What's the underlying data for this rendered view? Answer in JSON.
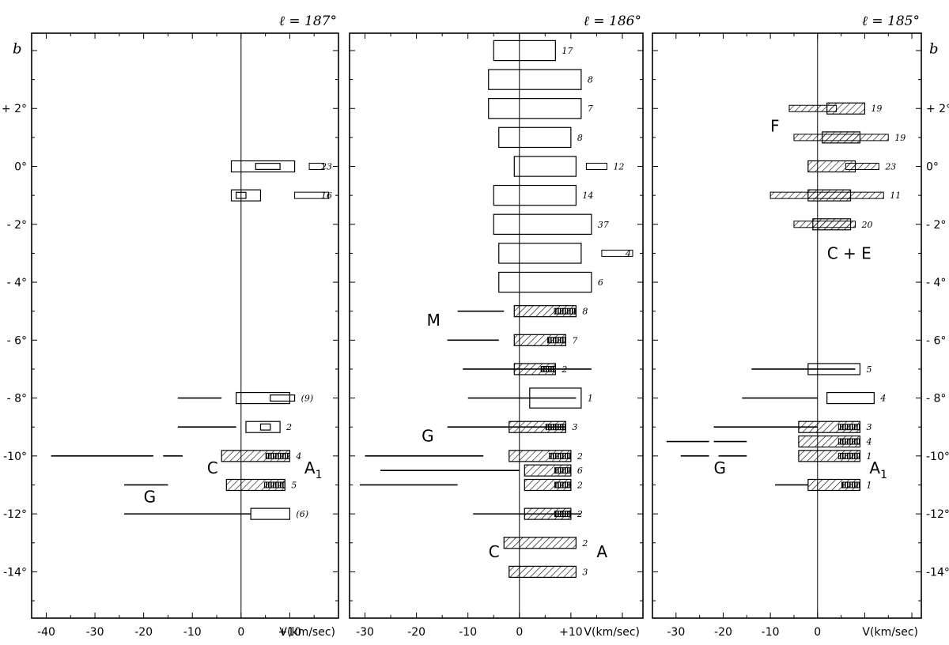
{
  "chart_data": [
    {
      "type": "scatter",
      "panel_label": "ℓ = 187°",
      "ylabel": "b",
      "xlabel": "V(km/sec)",
      "xlim": [
        -43,
        20
      ],
      "ylim": [
        -15.6,
        4.6
      ],
      "x_tick_labels": [
        "-40",
        "-30",
        "-20",
        "-10",
        "0",
        "+10"
      ],
      "y_tick_labels": [
        "+ 2°",
        "0°",
        "- 2°",
        "- 4°",
        "- 6°",
        "- 8°",
        "-10°",
        "-12°",
        "-14°"
      ],
      "feature_labels": [
        "C",
        "A1",
        "G"
      ],
      "features": [
        {
          "b": 0,
          "kind": "open",
          "boxes": [
            [
              -2,
              11
            ],
            [
              3,
              8
            ]
          ],
          "extra": [
            [
              14,
              17
            ]
          ],
          "count": "23"
        },
        {
          "b": -1,
          "kind": "open",
          "boxes": [
            [
              -2,
              4
            ],
            [
              -1,
              1
            ]
          ],
          "extra": [
            [
              11,
              18
            ]
          ],
          "count": "16"
        },
        {
          "b": -8,
          "kind": "open",
          "boxes": [
            [
              -1,
              10
            ],
            [
              6,
              11
            ]
          ],
          "lines": [
            [
              -13,
              -4
            ]
          ],
          "count": "(9)"
        },
        {
          "b": -9,
          "kind": "open",
          "boxes": [
            [
              1,
              8
            ],
            [
              4,
              6
            ]
          ],
          "lines": [
            [
              -13,
              -1
            ]
          ],
          "count": "2"
        },
        {
          "b": -10,
          "kind": "hatched",
          "boxes": [
            [
              -4,
              10
            ]
          ],
          "lines": [
            [
              -39,
              -18
            ],
            [
              -16,
              -12
            ]
          ],
          "count": "4"
        },
        {
          "b": -11,
          "kind": "hatched",
          "boxes": [
            [
              -3,
              9
            ]
          ],
          "lines": [
            [
              -24,
              -15
            ]
          ],
          "count": "5"
        },
        {
          "b": -12,
          "kind": "open",
          "boxes": [
            [
              2,
              10
            ]
          ],
          "lines": [
            [
              -24,
              2
            ]
          ],
          "count": "(6)"
        }
      ]
    },
    {
      "type": "scatter",
      "panel_label": "ℓ = 186°",
      "xlabel": "V(km/sec)",
      "xlim": [
        -33,
        24
      ],
      "ylim": [
        -15.6,
        4.6
      ],
      "x_tick_labels": [
        "-30",
        "-20",
        "-10",
        "0",
        "+10"
      ],
      "feature_labels": [
        "M",
        "G",
        "C",
        "A"
      ],
      "features": [
        {
          "b": 4,
          "kind": "open",
          "boxes": [
            [
              -5,
              7
            ]
          ],
          "count": "17"
        },
        {
          "b": 3,
          "kind": "open",
          "boxes": [
            [
              -6,
              12
            ]
          ],
          "count": "8"
        },
        {
          "b": 2,
          "kind": "open",
          "boxes": [
            [
              -6,
              12
            ]
          ],
          "count": "7"
        },
        {
          "b": 1,
          "kind": "open",
          "boxes": [
            [
              -4,
              10
            ]
          ],
          "count": "8"
        },
        {
          "b": 0,
          "kind": "open",
          "boxes": [
            [
              -1,
              11
            ]
          ],
          "extra": [
            [
              13,
              17
            ]
          ],
          "count": "12"
        },
        {
          "b": -1,
          "kind": "open",
          "boxes": [
            [
              -5,
              11
            ]
          ],
          "count": "14"
        },
        {
          "b": -2,
          "kind": "open",
          "boxes": [
            [
              -5,
              14
            ]
          ],
          "count": "37"
        },
        {
          "b": -3,
          "kind": "open",
          "boxes": [
            [
              -4,
              12
            ]
          ],
          "extra": [
            [
              16,
              22
            ]
          ],
          "count": "4"
        },
        {
          "b": -4,
          "kind": "open",
          "boxes": [
            [
              -4,
              14
            ]
          ],
          "count": "6"
        },
        {
          "b": -5,
          "kind": "hatched",
          "boxes": [
            [
              -1,
              11
            ]
          ],
          "lines": [
            [
              -12,
              -3
            ]
          ],
          "count": "8"
        },
        {
          "b": -6,
          "kind": "hatched",
          "boxes": [
            [
              -1,
              9
            ]
          ],
          "lines": [
            [
              -14,
              -4
            ]
          ],
          "count": "7"
        },
        {
          "b": -7,
          "kind": "hatched",
          "boxes": [
            [
              -1,
              7
            ]
          ],
          "lines": [
            [
              -11,
              14
            ]
          ],
          "count": "2"
        },
        {
          "b": -8,
          "kind": "open",
          "boxes": [
            [
              2,
              12
            ]
          ],
          "lines": [
            [
              -10,
              11
            ]
          ],
          "count": "1"
        },
        {
          "b": -9,
          "kind": "hatched",
          "boxes": [
            [
              -2,
              9
            ]
          ],
          "lines": [
            [
              -14,
              9
            ]
          ],
          "count": "3"
        },
        {
          "b": -10,
          "kind": "hatched",
          "boxes": [
            [
              -2,
              10
            ]
          ],
          "lines": [
            [
              -30,
              -7
            ]
          ],
          "count": "2"
        },
        {
          "b": -10.5,
          "kind": "hatched",
          "boxes": [
            [
              1,
              10
            ]
          ],
          "lines": [
            [
              -27,
              0
            ]
          ],
          "count": "6"
        },
        {
          "b": -11,
          "kind": "hatched",
          "boxes": [
            [
              1,
              10
            ]
          ],
          "lines": [
            [
              -31,
              -12
            ]
          ],
          "count": "2"
        },
        {
          "b": -12,
          "kind": "hatched",
          "boxes": [
            [
              1,
              10
            ]
          ],
          "lines": [
            [
              -9,
              12
            ]
          ],
          "count": "2"
        },
        {
          "b": -13,
          "kind": "hatched",
          "boxes": [
            [
              -3,
              11
            ]
          ],
          "count": "2"
        },
        {
          "b": -14,
          "kind": "hatched",
          "boxes": [
            [
              -2,
              11
            ]
          ],
          "count": "3"
        }
      ]
    },
    {
      "type": "scatter",
      "panel_label": "ℓ = 185°",
      "ylabel": "b",
      "xlabel": "V(km/sec)",
      "xlim": [
        -35,
        22
      ],
      "ylim": [
        -15.6,
        4.6
      ],
      "x_tick_labels": [
        "-30",
        "-20",
        "-10",
        "0"
      ],
      "y_tick_labels": [
        "+ 2°",
        "0°",
        "- 2°",
        "- 4°",
        "- 6°",
        "- 8°",
        "-10°",
        "-12°",
        "-14°"
      ],
      "feature_labels": [
        "F",
        "C + E",
        "G",
        "A1"
      ],
      "features": [
        {
          "b": 2,
          "kind": "hatched",
          "boxes": [
            [
              2,
              10
            ]
          ],
          "extra": [
            [
              -6,
              4
            ]
          ],
          "count": "19"
        },
        {
          "b": 1,
          "kind": "hatched",
          "boxes": [
            [
              1,
              9
            ]
          ],
          "extra": [
            [
              -5,
              15
            ]
          ],
          "count": "19"
        },
        {
          "b": 0,
          "kind": "hatched",
          "boxes": [
            [
              -2,
              8
            ]
          ],
          "extra": [
            [
              6,
              13
            ]
          ],
          "count": "23"
        },
        {
          "b": -1,
          "kind": "hatched",
          "boxes": [
            [
              -2,
              7
            ]
          ],
          "extra": [
            [
              -10,
              14
            ]
          ],
          "count": "11"
        },
        {
          "b": -2,
          "kind": "hatched",
          "boxes": [
            [
              -1,
              7
            ]
          ],
          "extra": [
            [
              -5,
              8
            ]
          ],
          "count": "20"
        },
        {
          "b": -7,
          "kind": "open",
          "boxes": [
            [
              -2,
              9
            ]
          ],
          "lines": [
            [
              -14,
              8
            ]
          ],
          "count": "5"
        },
        {
          "b": -8,
          "kind": "open",
          "boxes": [
            [
              2,
              12
            ]
          ],
          "lines": [
            [
              -16,
              0
            ]
          ],
          "count": "4"
        },
        {
          "b": -9,
          "kind": "hatched",
          "boxes": [
            [
              -4,
              9
            ]
          ],
          "lines": [
            [
              -22,
              0
            ]
          ],
          "count": "3"
        },
        {
          "b": -9.5,
          "kind": "hatched",
          "boxes": [
            [
              -4,
              9
            ]
          ],
          "lines": [
            [
              -32,
              -23
            ],
            [
              -22,
              -15
            ]
          ],
          "count": "4"
        },
        {
          "b": -10,
          "kind": "hatched",
          "boxes": [
            [
              -4,
              9
            ]
          ],
          "lines": [
            [
              -29,
              -23
            ],
            [
              -21,
              -15
            ]
          ],
          "count": "1"
        },
        {
          "b": -11,
          "kind": "hatched",
          "boxes": [
            [
              -2,
              9
            ]
          ],
          "lines": [
            [
              -9,
              -2
            ]
          ],
          "count": "1"
        }
      ]
    }
  ]
}
